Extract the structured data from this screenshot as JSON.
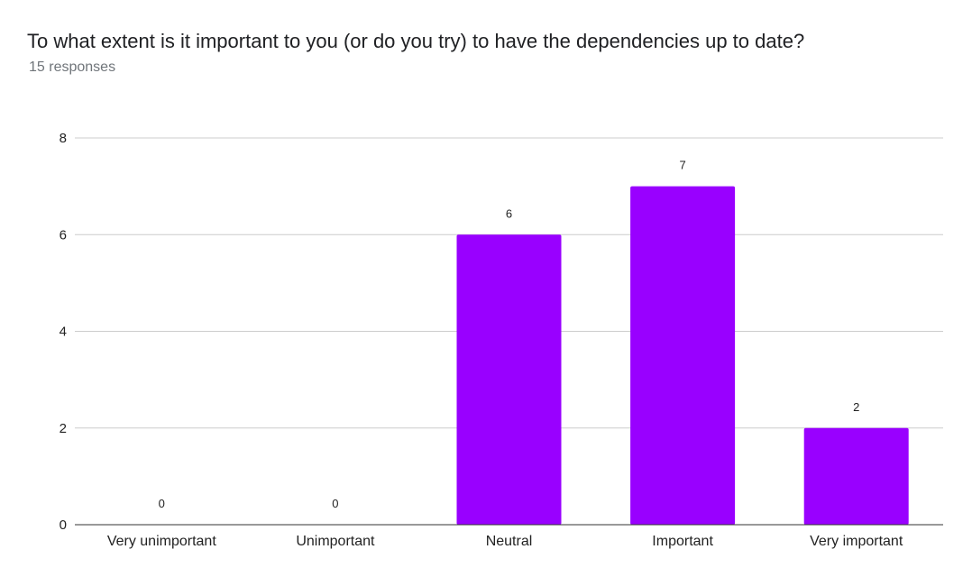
{
  "header": {
    "title": "To what extent is it important to you (or do you try) to have the dependencies up to date?",
    "responses": "15 responses"
  },
  "chart_data": {
    "type": "bar",
    "categories": [
      "Very unimportant",
      "Unimportant",
      "Neutral",
      "Important",
      "Very important"
    ],
    "values": [
      0,
      0,
      6,
      7,
      2
    ],
    "data_labels": [
      "0",
      "0",
      "6",
      "7",
      "2"
    ],
    "title": "To what extent is it important to you (or do you try) to have the dependencies up to date?",
    "xlabel": "",
    "ylabel": "",
    "ylim": [
      0,
      8
    ],
    "yticks": [
      0,
      2,
      4,
      6,
      8
    ],
    "grid": true,
    "legend": "none",
    "bar_color": "#9900ff"
  }
}
